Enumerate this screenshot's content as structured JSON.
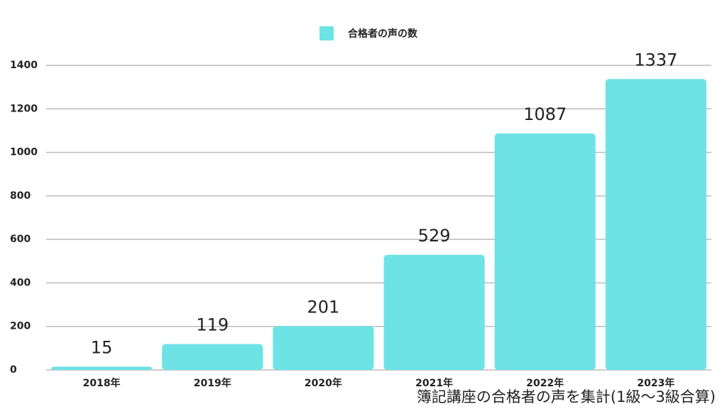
{
  "chart_data": {
    "type": "bar",
    "legend": "合格者の声の数",
    "annotation": "簿記講座の合格者の声を集計(1級〜3級合算)",
    "categories": [
      "2018年",
      "2019年",
      "2020年",
      "2021年",
      "2022年",
      "2023年"
    ],
    "values": [
      15,
      119,
      201,
      529,
      1087,
      1337
    ],
    "color": "#6de3e6",
    "ylim": [
      0,
      1400
    ],
    "yticks": [
      0,
      200,
      400,
      600,
      800,
      1000,
      1200,
      1400
    ],
    "grid": true
  }
}
